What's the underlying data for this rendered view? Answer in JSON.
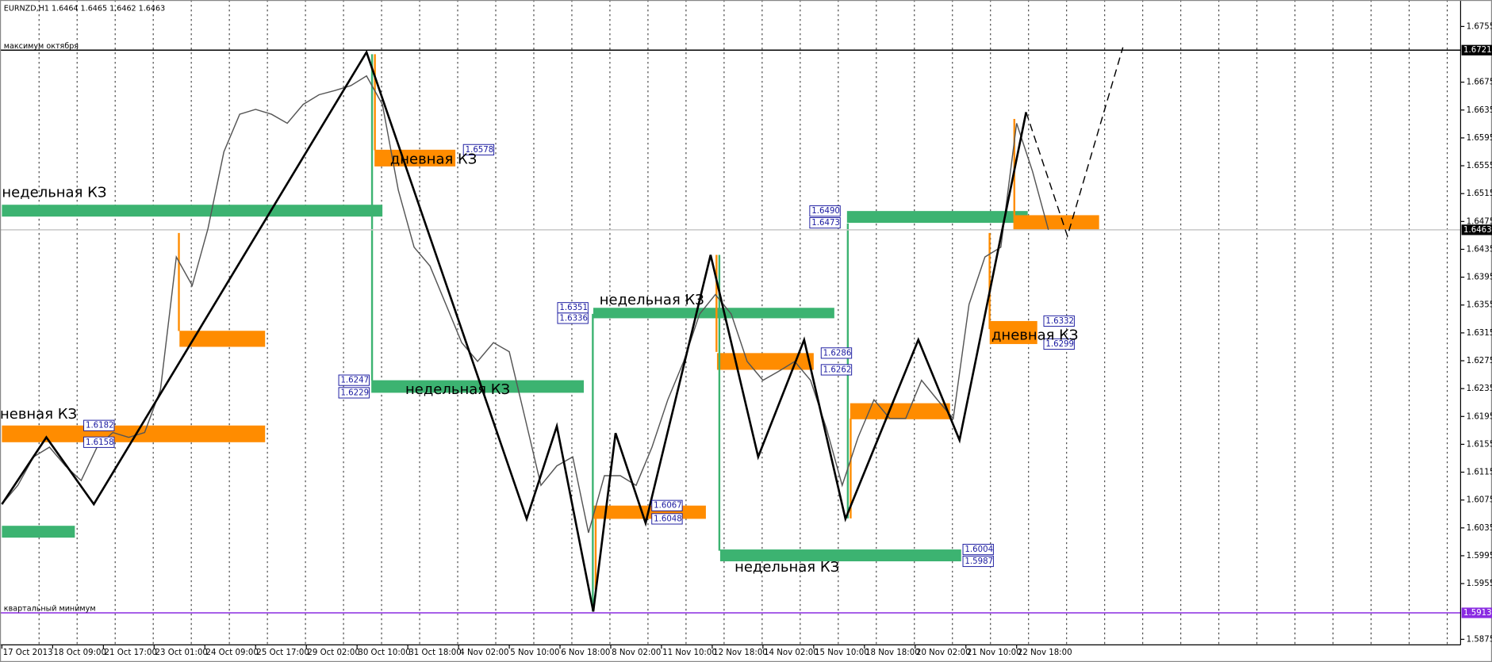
{
  "chart_data": {
    "type": "line",
    "title": "EURNZD,H1  1.6464 1.6465 1.6462 1.6463",
    "x": [
      0,
      10,
      20,
      30,
      40,
      50,
      60,
      70,
      80,
      90,
      100,
      110,
      120,
      130,
      140,
      150,
      160,
      170,
      180,
      190,
      200,
      210,
      220,
      230,
      240,
      250,
      260,
      270,
      280,
      290,
      300,
      310,
      320,
      330,
      340,
      350,
      360,
      370,
      380,
      390,
      400,
      410,
      420,
      430,
      440,
      450,
      460,
      470,
      480,
      490,
      500,
      510,
      520,
      530,
      540,
      550,
      560,
      570,
      580,
      590,
      600,
      610,
      620,
      630,
      640,
      650,
      660
    ],
    "values": [
      1.6069,
      1.6096,
      1.6137,
      1.6151,
      1.6124,
      1.6103,
      1.6151,
      1.6172,
      1.6165,
      1.6172,
      1.6233,
      1.6424,
      1.6383,
      1.6465,
      1.6575,
      1.6629,
      1.6636,
      1.6629,
      1.6616,
      1.6643,
      1.6657,
      1.6663,
      1.667,
      1.6684,
      1.6643,
      1.652,
      1.6438,
      1.6411,
      1.6356,
      1.6301,
      1.6274,
      1.6301,
      1.6288,
      1.6192,
      1.6096,
      1.6124,
      1.6137,
      1.6028,
      1.611,
      1.611,
      1.6096,
      1.6151,
      1.6219,
      1.6274,
      1.6342,
      1.637,
      1.6342,
      1.6274,
      1.6247,
      1.626,
      1.6274,
      1.6247,
      1.6178,
      1.6096,
      1.6165,
      1.6219,
      1.6192,
      1.6192,
      1.6247,
      1.6219,
      1.6192,
      1.6356,
      1.6424,
      1.6438,
      1.6616,
      1.6547,
      1.6463
    ],
    "color": "#555555",
    "zigzag": {
      "x": [
        0,
        28,
        58,
        230,
        331,
        350,
        373,
        387,
        406,
        447,
        477,
        506,
        532,
        578,
        604,
        646
      ],
      "values": [
        1.6069,
        1.6165,
        1.6069,
        1.6718,
        1.6048,
        1.6181,
        1.5915,
        1.6171,
        1.6042,
        1.6427,
        1.6137,
        1.6305,
        1.6048,
        1.6305,
        1.6161,
        1.6632
      ],
      "color": "#000000"
    },
    "projection": {
      "x": [
        646,
        672,
        707
      ],
      "values": [
        1.6632,
        1.6454,
        1.6725
      ],
      "color": "#000000",
      "dash": true
    },
    "xlim": [
      -1.2,
      920
    ],
    "xticks": [
      {
        "value": 0,
        "label": "17 Oct 2013"
      },
      {
        "value": 32,
        "label": "18 Oct 09:00"
      },
      {
        "value": 64,
        "label": "21 Oct 17:00"
      },
      {
        "value": 96,
        "label": "23 Oct 01:00"
      },
      {
        "value": 128,
        "label": "24 Oct 09:00"
      },
      {
        "value": 160,
        "label": "25 Oct 17:00"
      },
      {
        "value": 192,
        "label": "29 Oct 02:00"
      },
      {
        "value": 224,
        "label": "30 Oct 10:00"
      },
      {
        "value": 256,
        "label": "31 Oct 18:00"
      },
      {
        "value": 288,
        "label": "4 Nov 02:00"
      },
      {
        "value": 320,
        "label": "5 Nov 10:00"
      },
      {
        "value": 352,
        "label": "6 Nov 18:00"
      },
      {
        "value": 384,
        "label": "8 Nov 02:00"
      },
      {
        "value": 416,
        "label": "11 Nov 10:00"
      },
      {
        "value": 448,
        "label": "12 Nov 18:00"
      },
      {
        "value": 480,
        "label": "14 Nov 02:00"
      },
      {
        "value": 512,
        "label": "15 Nov 10:00"
      },
      {
        "value": 544,
        "label": "18 Nov 18:00"
      },
      {
        "value": 576,
        "label": "20 Nov 02:00"
      },
      {
        "value": 608,
        "label": "21 Nov 10:00"
      },
      {
        "value": 640,
        "label": "22 Nov 18:00"
      }
    ],
    "ylim": [
      1.5867,
      1.6793
    ],
    "yticks": [
      1.6755,
      1.6675,
      1.6635,
      1.6595,
      1.6555,
      1.6515,
      1.6475,
      1.6435,
      1.6395,
      1.6355,
      1.6315,
      1.6275,
      1.6235,
      1.6195,
      1.6155,
      1.6115,
      1.6075,
      1.6035,
      1.5995,
      1.5955,
      1.5875
    ],
    "grid": true,
    "levels": [
      {
        "value": 1.6721,
        "label": "1.6721",
        "text": "максимум октября",
        "color": "#000000"
      },
      {
        "value": 1.5913,
        "label": "1.5913",
        "text": "квартальный минимум",
        "color": "#8a2be2"
      },
      {
        "value": 1.6463,
        "label": "1.6463",
        "color": "#c8c8c8"
      }
    ],
    "zones": [
      {
        "x": [
          0,
          46
        ],
        "values": [
          1.6038,
          1.6021
        ],
        "color": "#3cb371"
      },
      {
        "x": [
          0,
          166
        ],
        "values": [
          1.6182,
          1.6158
        ],
        "value_labels": [
          "1.6182",
          "1.6158"
        ],
        "color": "#ff8c00",
        "text": "невная КЗ"
      },
      {
        "x": [
          112,
          166
        ],
        "values": [
          1.6318,
          1.6295
        ],
        "color": "#ff8c00"
      },
      {
        "x": [
          0,
          240
        ],
        "values": [
          1.6499,
          1.6482
        ],
        "color": "#3cb371",
        "text": "недельная КЗ"
      },
      {
        "x": [
          235,
          286
        ],
        "values": [
          1.6578,
          1.6554
        ],
        "value_labels": [
          "1.6578",
          null
        ],
        "color": "#ff8c00",
        "text": "дневная КЗ"
      },
      {
        "x": [
          233,
          367
        ],
        "values": [
          1.6247,
          1.6229
        ],
        "value_labels": [
          "1.6247",
          "1.6229"
        ],
        "color": "#3cb371",
        "text": "недельная КЗ"
      },
      {
        "x": [
          373,
          525
        ],
        "values": [
          1.6351,
          1.6336
        ],
        "value_labels": [
          "1.6351",
          "1.6336"
        ],
        "color": "#3cb371",
        "text": "недельная КЗ"
      },
      {
        "x": [
          373,
          444
        ],
        "values": [
          1.6067,
          1.6048
        ],
        "value_labels": [
          "1.6067",
          "1.6048"
        ],
        "color": "#ff8c00"
      },
      {
        "x": [
          451,
          512
        ],
        "values": [
          1.6286,
          1.6262
        ],
        "value_labels": [
          "1.6286",
          "1.6262"
        ],
        "color": "#ff8c00"
      },
      {
        "x": [
          453,
          605
        ],
        "values": [
          1.6004,
          1.5987
        ],
        "value_labels": [
          "1.6004",
          "1.5987"
        ],
        "color": "#3cb371",
        "text": "недельная КЗ"
      },
      {
        "x": [
          533,
          647
        ],
        "values": [
          1.649,
          1.6473
        ],
        "value_labels": [
          "1.6490",
          "1.6473"
        ],
        "color": "#3cb371"
      },
      {
        "x": [
          535,
          598
        ],
        "values": [
          1.6214,
          1.6191
        ],
        "color": "#ff8c00"
      },
      {
        "x": [
          623,
          653
        ],
        "values": [
          1.6332,
          1.6299
        ],
        "value_labels": [
          "1.6332",
          "1.6299"
        ],
        "color": "#ff8c00",
        "text": "дневная КЗ"
      },
      {
        "x": [
          639,
          692
        ],
        "values": [
          1.6484,
          1.6463
        ],
        "color": "#ff8c00"
      }
    ]
  }
}
